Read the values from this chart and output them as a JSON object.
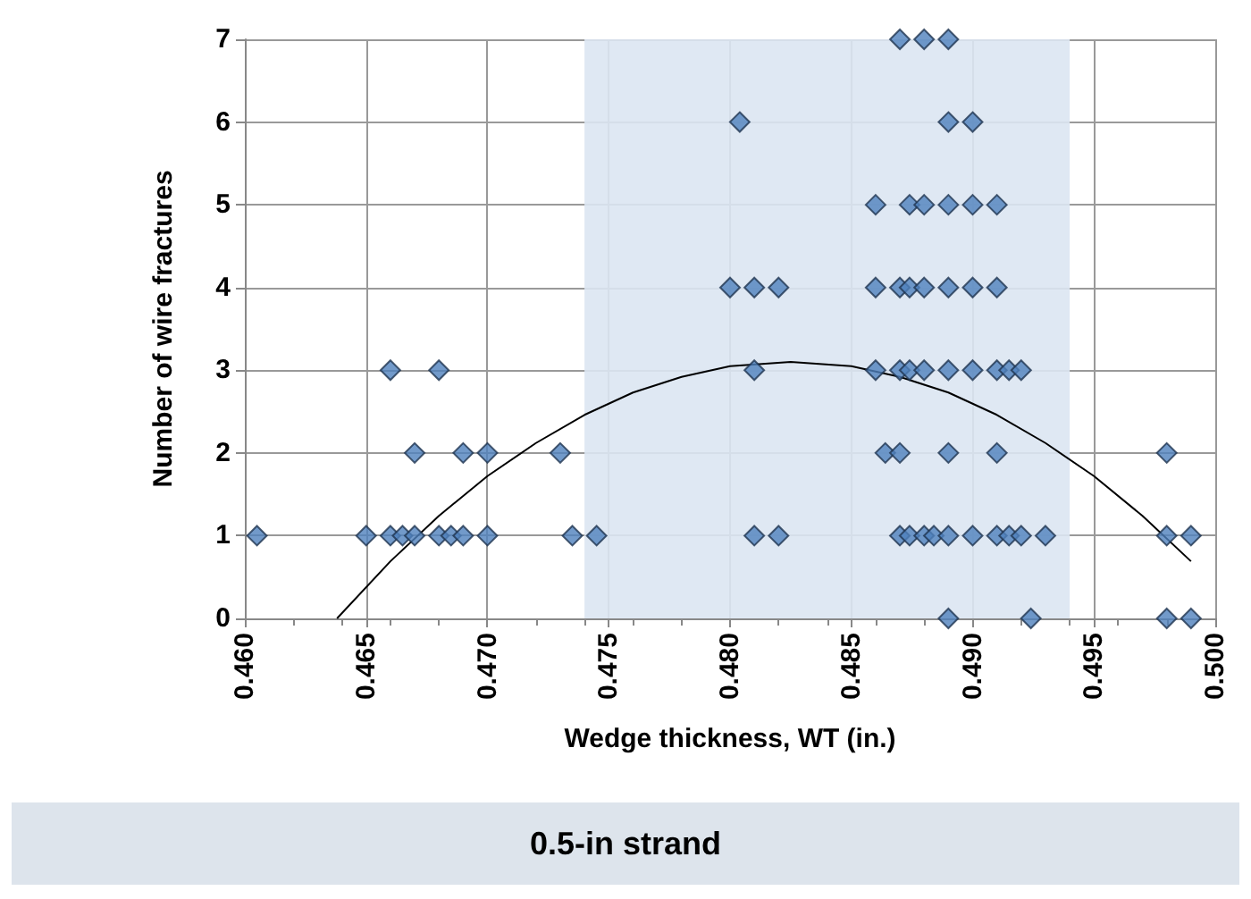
{
  "chart_data": {
    "type": "scatter",
    "title": "0.5-in strand",
    "xlabel": "Wedge thickness, WT (in.)",
    "ylabel": "Number of wire fractures",
    "xlim": [
      0.46,
      0.5
    ],
    "xticks": [
      {
        "value": 0.46,
        "label": "0.460"
      },
      {
        "value": 0.465,
        "label": "0.465"
      },
      {
        "value": 0.47,
        "label": "0.470"
      },
      {
        "value": 0.475,
        "label": "0.475"
      },
      {
        "value": 0.48,
        "label": "0.480"
      },
      {
        "value": 0.485,
        "label": "0.485"
      },
      {
        "value": 0.49,
        "label": "0.490"
      },
      {
        "value": 0.495,
        "label": "0.495"
      },
      {
        "value": 0.5,
        "label": "0.500"
      }
    ],
    "ylim": [
      0,
      7
    ],
    "yticks": [
      0,
      1,
      2,
      3,
      4,
      5,
      6,
      7
    ],
    "grid": true,
    "marker": "diamond",
    "bands": [
      {
        "axis": "x",
        "from": 0.474,
        "to": 0.494,
        "color": "#dce6f2"
      }
    ],
    "series": [
      {
        "color": "#4f81bd",
        "x": [
          0.487,
          0.488,
          0.489,
          0.4804,
          0.489,
          0.49,
          0.486,
          0.4874,
          0.488,
          0.489,
          0.49,
          0.491,
          0.48,
          0.481,
          0.482,
          0.486,
          0.487,
          0.4874,
          0.488,
          0.489,
          0.49,
          0.491,
          0.466,
          0.468,
          0.481,
          0.486,
          0.487,
          0.4874,
          0.488,
          0.489,
          0.49,
          0.491,
          0.4915,
          0.492,
          0.467,
          0.469,
          0.47,
          0.473,
          0.4864,
          0.487,
          0.489,
          0.491,
          0.498,
          0.4605,
          0.465,
          0.466,
          0.4665,
          0.467,
          0.468,
          0.4685,
          0.469,
          0.47,
          0.4735,
          0.4745,
          0.481,
          0.482,
          0.487,
          0.4874,
          0.488,
          0.4884,
          0.489,
          0.49,
          0.491,
          0.4915,
          0.492,
          0.493,
          0.498,
          0.499,
          0.489,
          0.4924,
          0.498,
          0.499
        ],
        "values": [
          7,
          7,
          7,
          6,
          6,
          6,
          5,
          5,
          5,
          5,
          5,
          5,
          4,
          4,
          4,
          4,
          4,
          4,
          4,
          4,
          4,
          4,
          3,
          3,
          3,
          3,
          3,
          3,
          3,
          3,
          3,
          3,
          3,
          3,
          2,
          2,
          2,
          2,
          2,
          2,
          2,
          2,
          2,
          1,
          1,
          1,
          1,
          1,
          1,
          1,
          1,
          1,
          1,
          1,
          1,
          1,
          1,
          1,
          1,
          1,
          1,
          1,
          1,
          1,
          1,
          1,
          1,
          1,
          0,
          0,
          0,
          0
        ]
      },
      {
        "type": "line",
        "color": "#000000",
        "marker": "none",
        "line_style": "solid",
        "x": [
          0.4638,
          0.466,
          0.468,
          0.47,
          0.472,
          0.474,
          0.476,
          0.478,
          0.48,
          0.4825,
          0.485,
          0.487,
          0.489,
          0.491,
          0.493,
          0.495,
          0.497,
          0.499
        ],
        "values": [
          0,
          0.69,
          1.24,
          1.72,
          2.12,
          2.46,
          2.73,
          2.92,
          3.05,
          3.1,
          3.05,
          2.92,
          2.73,
          2.46,
          2.12,
          1.72,
          1.24,
          0.69
        ]
      }
    ]
  }
}
